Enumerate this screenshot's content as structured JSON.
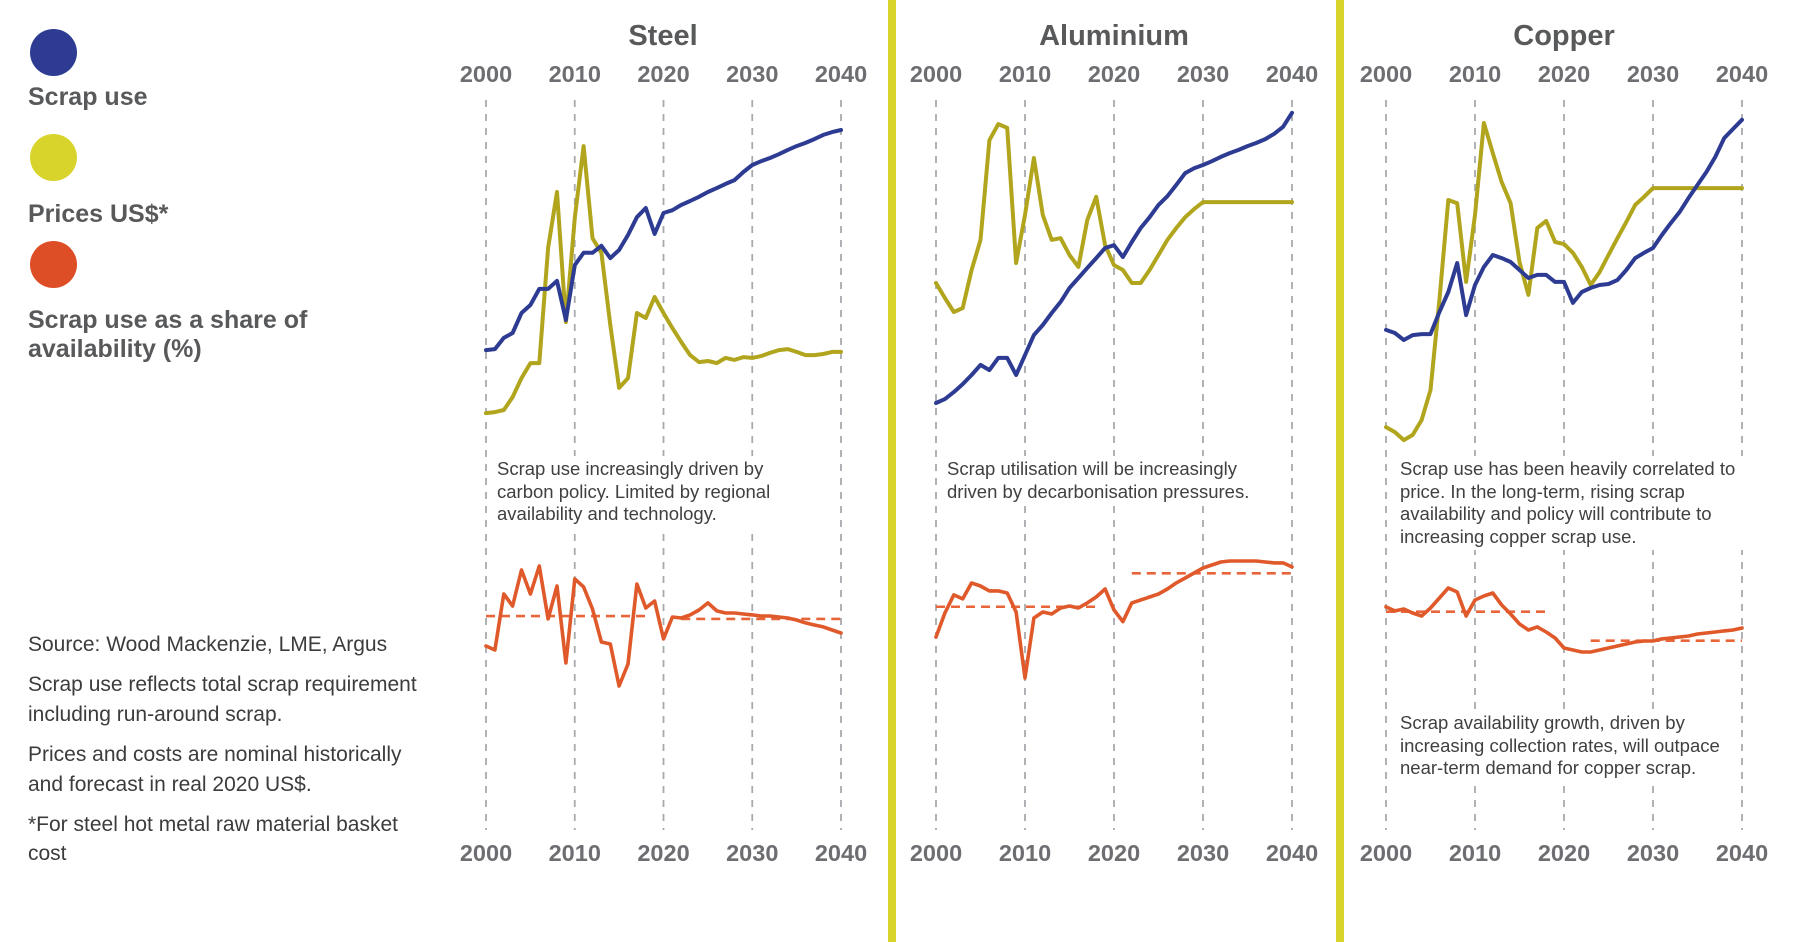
{
  "legend": {
    "items": [
      {
        "label": "Scrap use",
        "color": "#2d3c92",
        "swatch": "circle"
      },
      {
        "label": "Prices US$*",
        "color": "#d8d42c",
        "swatch": "circle"
      },
      {
        "label": "Scrap use as a share of availability (%)",
        "color": "#dd4e26",
        "swatch": "circle"
      }
    ]
  },
  "footnotes": [
    "Source: Wood Mackenzie, LME, Argus",
    "Scrap use reflects total scrap requirement including run-around scrap.",
    "Prices and costs are nominal historically and forecast in real 2020 US$.",
    "*For steel hot metal raw material basket cost"
  ],
  "colors": {
    "scrap_use_line": "#2d3c92",
    "price_line": "#b1a51d",
    "share_line": "#e0592a",
    "share_dashed": "#e8653a",
    "divider": "#d8d42c",
    "gridline": "#a8aaad",
    "title_text": "#58595b",
    "tick_text": "#6d6e71",
    "annotation_text": "#404041"
  },
  "chart_data": [
    {
      "title": "Steel",
      "type": "line",
      "x_ticks": [
        "2000",
        "2010",
        "2020",
        "2030",
        "2040"
      ],
      "x_range": [
        2000,
        2040
      ],
      "y_axis": "none shown (values are relative index 0-100, estimated from pixels)",
      "grid": "vertical dashed decade lines",
      "annotation": "Scrap use increasingly driven by carbon policy. Limited by regional availability and technology.",
      "annotation2": null,
      "top": {
        "series": [
          {
            "name": "Prices US$*",
            "color": "#b1a51d",
            "values": [
              9.1,
              9.4,
              10,
              13.7,
              19.1,
              23.4,
              23.4,
              56.3,
              72.3,
              35.1,
              64.9,
              85.4,
              59.1,
              54.9,
              34.3,
              16.3,
              19.1,
              37.7,
              36.3,
              42.3,
              37.7,
              33.4,
              29.4,
              25.7,
              23.7,
              24,
              23.4,
              24.9,
              24.3,
              25.1,
              24.9,
              25.4,
              26.3,
              27.1,
              27.4,
              26.6,
              25.7,
              25.7,
              26,
              26.6,
              26.6
            ]
          },
          {
            "name": "Scrap use",
            "color": "#2d3c92",
            "values": [
              27.1,
              27.4,
              30.6,
              32,
              37.7,
              40,
              44.6,
              44.6,
              46.9,
              35.7,
              51.4,
              54.9,
              54.9,
              56.9,
              53.4,
              55.7,
              60,
              65.1,
              67.7,
              60.3,
              66.3,
              67.1,
              68.6,
              69.7,
              70.9,
              72.3,
              73.4,
              74.6,
              75.7,
              78,
              80,
              81.1,
              82,
              83.1,
              84.3,
              85.4,
              86.3,
              87.4,
              88.6,
              89.4,
              90
            ]
          }
        ]
      },
      "bottom": {
        "series": [
          {
            "name": "Scrap use as a share of availability (%)",
            "color": "#e0592a",
            "values": [
              36.9,
              34.4,
              69.4,
              61.9,
              84.4,
              69.4,
              86.9,
              53.8,
              74.4,
              26.3,
              78.8,
              73.8,
              60,
              39.4,
              38.1,
              11.9,
              25.6,
              75.6,
              60.6,
              65,
              41.3,
              55,
              54.4,
              56.3,
              59.4,
              63.8,
              58.8,
              57.5,
              57.5,
              56.9,
              56.3,
              55.6,
              55.6,
              55,
              54.4,
              53.1,
              51.3,
              50,
              48.8,
              46.9,
              45
            ]
          }
        ],
        "average_lines": [
          {
            "from": 2000,
            "to": 2018,
            "value": 55.6
          },
          {
            "from": 2022,
            "to": 2040,
            "value": 53.8
          }
        ]
      }
    },
    {
      "title": "Aluminium",
      "type": "line",
      "x_ticks": [
        "2000",
        "2010",
        "2020",
        "2030",
        "2040"
      ],
      "x_range": [
        2000,
        2040
      ],
      "y_axis": "none shown (values are relative index 0-100, estimated from pixels)",
      "grid": "vertical dashed decade lines",
      "annotation": "Scrap utilisation will be increasingly driven by decarbonisation pressures.",
      "annotation2": null,
      "top": {
        "series": [
          {
            "name": "Prices US$*",
            "color": "#b1a51d",
            "values": [
              46.3,
              42,
              38,
              39.1,
              50,
              58.6,
              87.1,
              91.7,
              90.6,
              52,
              65.7,
              82,
              65.7,
              58.6,
              59.1,
              54.3,
              50.9,
              64.3,
              70.9,
              57.1,
              51.4,
              50,
              46.3,
              46.3,
              50,
              54.3,
              58.6,
              62,
              65.1,
              67.4,
              69.4,
              69.4,
              69.4,
              69.4,
              69.4,
              69.4,
              69.4,
              69.4,
              69.4,
              69.4,
              69.4
            ]
          },
          {
            "name": "Scrap use",
            "color": "#2d3c92",
            "values": [
              12,
              13.1,
              15.1,
              17.4,
              20,
              22.9,
              21.4,
              24.9,
              24.9,
              20,
              25.7,
              31.4,
              34.3,
              37.7,
              40.9,
              44.9,
              47.7,
              50.6,
              53.4,
              56.3,
              57.1,
              53.7,
              58,
              62,
              65.1,
              68.6,
              71.1,
              74.3,
              77.7,
              79.1,
              80,
              81.1,
              82.3,
              83.4,
              84.3,
              85.4,
              86.3,
              87.4,
              88.9,
              90.9,
              94.9
            ]
          }
        ]
      },
      "bottom": {
        "series": [
          {
            "name": "Scrap use as a share of availability (%)",
            "color": "#e0592a",
            "values": [
              42.5,
              57.5,
              68.8,
              66.3,
              76.3,
              74.4,
              71.3,
              71.3,
              70,
              58.1,
              16.9,
              54.4,
              58.1,
              56.9,
              60.6,
              61.9,
              60.6,
              63.8,
              67.5,
              72.5,
              59.4,
              52.1,
              63.8,
              65.6,
              67.5,
              69.4,
              72.5,
              76.3,
              79.4,
              82.5,
              85.6,
              87.5,
              89.4,
              90,
              90,
              90,
              90,
              89.4,
              88.8,
              88.8,
              86.3
            ]
          }
        ],
        "average_lines": [
          {
            "from": 2000,
            "to": 2018,
            "value": 61.4
          },
          {
            "from": 2022,
            "to": 2040,
            "value": 82.3
          }
        ]
      }
    },
    {
      "title": "Copper",
      "type": "line",
      "x_ticks": [
        "2000",
        "2010",
        "2020",
        "2030",
        "2040"
      ],
      "x_range": [
        2000,
        2040
      ],
      "y_axis": "none shown (values are relative index 0-100, estimated from pixels)",
      "grid": "vertical dashed decade lines",
      "annotation": "Scrap use has been heavily correlated to price. In the long-term, rising scrap availability and policy will contribute to increasing copper scrap use.",
      "annotation2": "Scrap availability growth, driven by increasing collection rates, will outpace near-term demand for copper scrap.",
      "top": {
        "series": [
          {
            "name": "Prices US$*",
            "color": "#b1a51d",
            "values": [
              5.1,
              3.7,
              1.4,
              2.9,
              7.1,
              15.7,
              41.4,
              70,
              69.1,
              46.6,
              65.7,
              92,
              83.4,
              75.1,
              69.1,
              52.3,
              42.9,
              62,
              64,
              58,
              57.4,
              54.9,
              50.9,
              45.7,
              49.4,
              54.3,
              59.1,
              63.7,
              68.6,
              70.9,
              73.4,
              73.4,
              73.4,
              73.4,
              73.4,
              73.4,
              73.4,
              73.4,
              73.4,
              73.4,
              73.4
            ]
          },
          {
            "name": "Scrap use",
            "color": "#2d3c92",
            "values": [
              32.9,
              32,
              30,
              31.4,
              31.7,
              31.7,
              38,
              43.7,
              52,
              37.1,
              45.7,
              50.9,
              54.3,
              53.4,
              52.3,
              50,
              47.7,
              48.6,
              48.6,
              46.6,
              46.6,
              40.6,
              43.7,
              44.9,
              45.7,
              46,
              47.1,
              50,
              53.4,
              54.9,
              56.3,
              60,
              63.4,
              66.6,
              70.6,
              74.3,
              78,
              82.3,
              87.7,
              90.3,
              92.9
            ]
          }
        ]
      },
      "bottom": {
        "series": [
          {
            "name": "Scrap use as a share of availability (%)",
            "color": "#e0592a",
            "values": [
              61.3,
              58.8,
              60,
              57.5,
              55.6,
              60.6,
              66.9,
              73.1,
              70.6,
              55.6,
              65.6,
              68.1,
              70,
              62.5,
              56.9,
              50.6,
              46.9,
              48.8,
              45.6,
              41.9,
              35.6,
              34.4,
              33.1,
              33.1,
              34.4,
              35.6,
              36.9,
              38.1,
              39.4,
              40,
              40,
              41.3,
              41.9,
              42.5,
              43.1,
              44.4,
              45,
              45.6,
              46.3,
              46.9,
              48.1
            ]
          }
        ],
        "average_lines": [
          {
            "from": 2000,
            "to": 2018,
            "value": 58.3
          },
          {
            "from": 2023,
            "to": 2040,
            "value": 40.2
          }
        ]
      }
    }
  ]
}
